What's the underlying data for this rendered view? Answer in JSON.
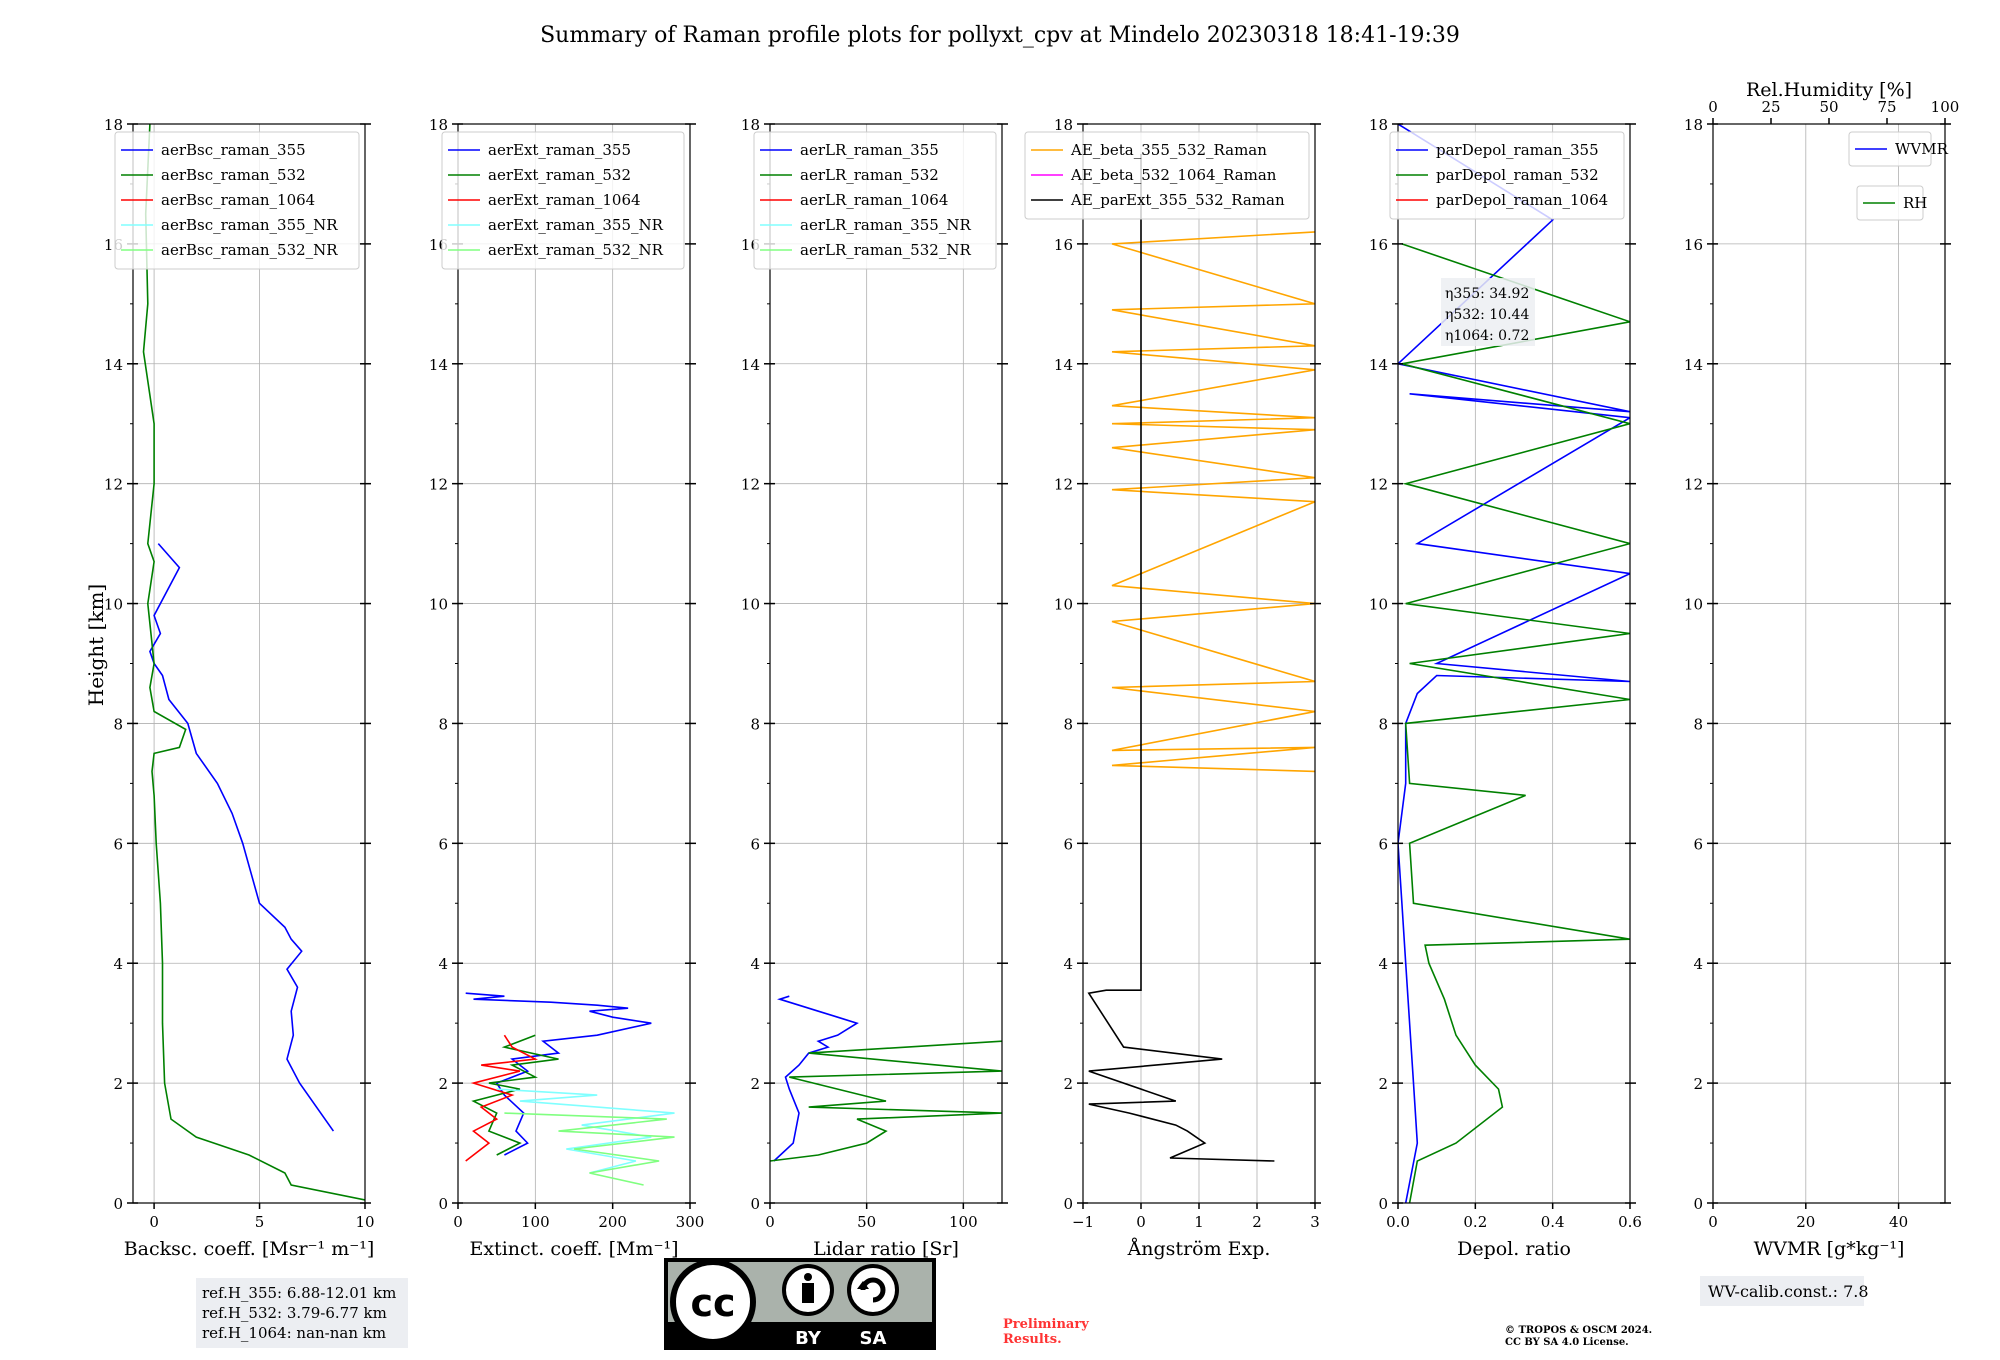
{
  "figure": {
    "title": "Summary of Raman profile plots for pollyxt_cpv at Mindelo 20230318 18:41-19:39",
    "ylabel": "Height [km]"
  },
  "chart_data": [
    {
      "type": "line",
      "xlabel": "Backsc. coeff. [Msr⁻¹ m⁻¹]",
      "xlim": [
        -1,
        10
      ],
      "ylim": [
        0,
        18
      ],
      "xticks": [
        0,
        5,
        10
      ],
      "yticks": [
        0,
        2,
        4,
        6,
        8,
        10,
        12,
        14,
        16,
        18
      ],
      "grid": true,
      "legend_position": "top-right",
      "series": [
        {
          "name": "aerBsc_raman_355",
          "color": "#0000ff",
          "x": [
            8.5,
            6.9,
            6.3,
            6.6,
            6.5,
            6.8,
            6.3,
            7.0,
            6.5,
            6.2,
            5.0,
            4.6,
            4.2,
            3.7,
            3.0,
            2.0,
            1.6,
            0.7,
            0.4,
            0.0,
            -0.2,
            0.3,
            0.0,
            1.2,
            0.2
          ],
          "y": [
            1.2,
            2.0,
            2.4,
            2.8,
            3.2,
            3.6,
            3.9,
            4.2,
            4.4,
            4.6,
            5.0,
            5.5,
            6.0,
            6.5,
            7.0,
            7.5,
            8.0,
            8.4,
            8.8,
            9.0,
            9.2,
            9.5,
            9.8,
            10.6,
            11.0
          ]
        },
        {
          "name": "aerBsc_raman_532",
          "color": "#008000",
          "x": [
            10.0,
            6.5,
            6.2,
            4.5,
            2.0,
            0.8,
            0.5,
            0.4,
            0.4,
            0.3,
            0.1,
            0.0,
            -0.1,
            0.0,
            1.2,
            1.5,
            0.0,
            -0.2,
            0.0,
            -0.3,
            0.0,
            -0.3,
            0.0,
            0.0,
            -0.5,
            -0.3,
            -0.4,
            -0.2
          ],
          "y": [
            0.05,
            0.3,
            0.5,
            0.8,
            1.1,
            1.4,
            2.0,
            3.0,
            4.0,
            5.0,
            6.0,
            6.8,
            7.2,
            7.5,
            7.6,
            7.9,
            8.2,
            8.6,
            9.0,
            10.0,
            10.7,
            11.0,
            12.0,
            13.0,
            14.2,
            15.0,
            16.5,
            18.0
          ]
        },
        {
          "name": "aerBsc_raman_1064",
          "color": "#ff0000",
          "x": [],
          "y": []
        },
        {
          "name": "aerBsc_raman_355_NR",
          "color": "#80ffff",
          "x": [],
          "y": []
        },
        {
          "name": "aerBsc_raman_532_NR",
          "color": "#80ff80",
          "x": [],
          "y": []
        }
      ]
    },
    {
      "type": "line",
      "xlabel": "Extinct. coeff. [Mm⁻¹]",
      "xlim": [
        0,
        300
      ],
      "ylim": [
        0,
        18
      ],
      "xticks": [
        0,
        100,
        200,
        300
      ],
      "yticks": [
        0,
        2,
        4,
        6,
        8,
        10,
        12,
        14,
        16,
        18
      ],
      "grid": true,
      "legend_position": "top-right",
      "series": [
        {
          "name": "aerExt_raman_355",
          "color": "#0000ff",
          "x": [
            60,
            90,
            75,
            85,
            60,
            50,
            90,
            70,
            130,
            110,
            180,
            250,
            200,
            170,
            220,
            180,
            120,
            20,
            60,
            10
          ],
          "y": [
            0.8,
            1.0,
            1.2,
            1.5,
            1.8,
            2.0,
            2.2,
            2.4,
            2.5,
            2.7,
            2.8,
            3.0,
            3.1,
            3.2,
            3.25,
            3.3,
            3.35,
            3.4,
            3.45,
            3.5
          ]
        },
        {
          "name": "aerExt_raman_532",
          "color": "#008000",
          "x": [
            50,
            80,
            40,
            50,
            20,
            80,
            40,
            100,
            70,
            130,
            60,
            100
          ],
          "y": [
            0.8,
            1.0,
            1.2,
            1.5,
            1.7,
            1.9,
            2.0,
            2.1,
            2.3,
            2.4,
            2.6,
            2.8
          ]
        },
        {
          "name": "aerExt_raman_1064",
          "color": "#ff0000",
          "x": [
            10,
            40,
            20,
            50,
            30,
            70,
            20,
            80,
            30,
            100,
            70,
            60
          ],
          "y": [
            0.7,
            1.0,
            1.2,
            1.4,
            1.6,
            1.8,
            2.0,
            2.2,
            2.3,
            2.4,
            2.6,
            2.8
          ]
        },
        {
          "name": "aerExt_raman_355_NR",
          "color": "#80ffff",
          "x": [
            170,
            230,
            140,
            250,
            160,
            280,
            80,
            180,
            50
          ],
          "y": [
            0.5,
            0.7,
            0.9,
            1.1,
            1.3,
            1.5,
            1.7,
            1.8,
            1.9
          ]
        },
        {
          "name": "aerExt_raman_532_NR",
          "color": "#80ff80",
          "x": [
            240,
            170,
            260,
            150,
            280,
            130,
            270,
            60
          ],
          "y": [
            0.3,
            0.5,
            0.7,
            0.9,
            1.1,
            1.2,
            1.4,
            1.5
          ]
        }
      ]
    },
    {
      "type": "line",
      "xlabel": "Lidar ratio [Sr]",
      "xlim": [
        0,
        120
      ],
      "ylim": [
        0,
        18
      ],
      "xticks": [
        0,
        50,
        100
      ],
      "yticks": [
        0,
        2,
        4,
        6,
        8,
        10,
        12,
        14,
        16,
        18
      ],
      "grid": true,
      "legend_position": "top-right",
      "series": [
        {
          "name": "aerLR_raman_355",
          "color": "#0000ff",
          "x": [
            2,
            12,
            15,
            10,
            8,
            15,
            20,
            30,
            25,
            35,
            40,
            45,
            35,
            25,
            15,
            5,
            10
          ],
          "y": [
            0.7,
            1.0,
            1.5,
            1.9,
            2.1,
            2.3,
            2.5,
            2.6,
            2.7,
            2.8,
            2.9,
            3.0,
            3.1,
            3.2,
            3.3,
            3.4,
            3.45
          ]
        },
        {
          "name": "aerLR_raman_532",
          "color": "#008000",
          "x": [
            0,
            25,
            50,
            60,
            45,
            120,
            20,
            60,
            10,
            120,
            20,
            120
          ],
          "y": [
            0.7,
            0.8,
            1.0,
            1.2,
            1.4,
            1.5,
            1.6,
            1.7,
            2.1,
            2.2,
            2.5,
            2.7
          ]
        },
        {
          "name": "aerLR_raman_1064",
          "color": "#ff0000",
          "x": [],
          "y": []
        },
        {
          "name": "aerLR_raman_355_NR",
          "color": "#80ffff",
          "x": [],
          "y": []
        },
        {
          "name": "aerLR_raman_532_NR",
          "color": "#80ff80",
          "x": [],
          "y": []
        }
      ]
    },
    {
      "type": "line",
      "xlabel": "Ångström Exp.",
      "xlim": [
        -1,
        3
      ],
      "ylim": [
        0,
        18
      ],
      "xticks": [
        -1,
        0,
        1,
        2,
        3
      ],
      "yticks": [
        0,
        2,
        4,
        6,
        8,
        10,
        12,
        14,
        16,
        18
      ],
      "grid": true,
      "legend_position": "top-right",
      "series": [
        {
          "name": "AE_beta_355_532_Raman",
          "color": "#ffa500",
          "x": [
            3.0,
            -0.5,
            3.0,
            -0.5,
            3.0,
            -0.5,
            3.0,
            -0.5,
            3.0,
            -0.5,
            3.0,
            -0.5,
            3.0,
            -0.5,
            3.0,
            -0.5,
            3.0,
            -0.5,
            3.0,
            -0.5,
            3.0,
            -0.5,
            3.0,
            -0.5,
            3.0
          ],
          "y": [
            7.2,
            7.3,
            7.6,
            7.55,
            8.2,
            8.6,
            8.7,
            9.7,
            10.0,
            10.3,
            11.7,
            11.9,
            12.1,
            12.6,
            12.9,
            13.0,
            13.1,
            13.3,
            13.9,
            14.2,
            14.3,
            14.9,
            15.0,
            16.0,
            16.2
          ]
        },
        {
          "name": "AE_beta_532_1064_Raman",
          "color": "#ff00ff",
          "x": [],
          "y": []
        },
        {
          "name": "AE_parExt_355_532_Raman",
          "color": "#000000",
          "x": [
            2.3,
            0.5,
            1.1,
            0.8,
            0.6,
            -0.2,
            -0.9,
            0.6,
            -0.9,
            1.4,
            -0.3,
            -0.9,
            -0.6,
            0.0,
            0.0,
            0.0
          ],
          "y": [
            0.7,
            0.75,
            1.0,
            1.2,
            1.3,
            1.5,
            1.65,
            1.7,
            2.2,
            2.4,
            2.6,
            3.5,
            3.55,
            3.55,
            8.0,
            17.5
          ]
        }
      ]
    },
    {
      "type": "line",
      "xlabel": "Depol. ratio",
      "xlim": [
        0,
        0.6
      ],
      "ylim": [
        0,
        18
      ],
      "xticks": [
        0.0,
        0.2,
        0.4,
        0.6
      ],
      "yticks": [
        0,
        2,
        4,
        6,
        8,
        10,
        12,
        14,
        16,
        18
      ],
      "grid": true,
      "legend_position": "top-right",
      "annotations": [
        "η355: 34.92",
        "η532: 10.44",
        "η1064: 0.72"
      ],
      "series": [
        {
          "name": "parDepol_raman_355",
          "color": "#0000ff",
          "x": [
            0.02,
            0.05,
            0.04,
            0.03,
            0.02,
            0.01,
            0.0,
            0.02,
            0.02,
            0.05,
            0.1,
            0.6,
            0.1,
            0.6,
            0.05,
            0.6,
            0.03,
            0.6,
            0.0,
            0.4,
            0.0
          ],
          "y": [
            0.0,
            1.0,
            2.0,
            3.0,
            4.0,
            5.0,
            6.0,
            7.0,
            8.0,
            8.5,
            8.8,
            8.7,
            9.0,
            10.5,
            11.0,
            13.1,
            13.5,
            13.2,
            14.0,
            16.4,
            18.0
          ]
        },
        {
          "name": "parDepol_raman_532",
          "color": "#008000",
          "x": [
            0.03,
            0.05,
            0.15,
            0.27,
            0.26,
            0.2,
            0.15,
            0.12,
            0.08,
            0.07,
            0.6,
            0.04,
            0.03,
            0.33,
            0.03,
            0.02,
            0.6,
            0.03,
            0.6,
            0.02,
            0.6,
            0.02,
            0.6,
            0.01,
            0.6,
            0.01
          ],
          "y": [
            0.0,
            0.7,
            1.0,
            1.6,
            1.9,
            2.3,
            2.8,
            3.4,
            4.0,
            4.3,
            4.4,
            5.0,
            6.0,
            6.8,
            7.0,
            8.0,
            8.4,
            9.0,
            9.5,
            10.0,
            11.0,
            12.0,
            13.0,
            14.0,
            14.7,
            16.0
          ]
        },
        {
          "name": "parDepol_raman_1064",
          "color": "#ff0000",
          "x": [],
          "y": []
        }
      ]
    },
    {
      "type": "line",
      "xlabel": "WVMR [g*kg⁻¹]",
      "x2label": "Rel.Humidity [%]",
      "xlim": [
        0,
        50
      ],
      "x2lim": [
        0,
        100
      ],
      "ylim": [
        0,
        18
      ],
      "xticks": [
        0,
        20,
        40
      ],
      "x2ticks": [
        0,
        25,
        50,
        75,
        100
      ],
      "yticks": [
        0,
        2,
        4,
        6,
        8,
        10,
        12,
        14,
        16,
        18
      ],
      "grid": true,
      "legend_position": "top-right",
      "series": [
        {
          "name": "WVMR",
          "color": "#0000ff",
          "x": [],
          "y": []
        },
        {
          "name": "RH",
          "color": "#008000",
          "x": [],
          "y": []
        }
      ]
    }
  ],
  "footer": {
    "ref_heights": [
      "ref.H_355: 6.88-12.01 km",
      "ref.H_532: 3.79-6.77 km",
      "ref.H_1064: nan-nan km"
    ],
    "license_badge": {
      "cc": "cc",
      "by": "BY",
      "sa": "SA"
    },
    "preliminary": [
      "Preliminary",
      "Results."
    ],
    "copyright": [
      "© TROPOS & OSCM 2024.",
      "CC BY SA 4.0 License."
    ],
    "wv_calib": "WV-calib.const.: 7.8"
  }
}
